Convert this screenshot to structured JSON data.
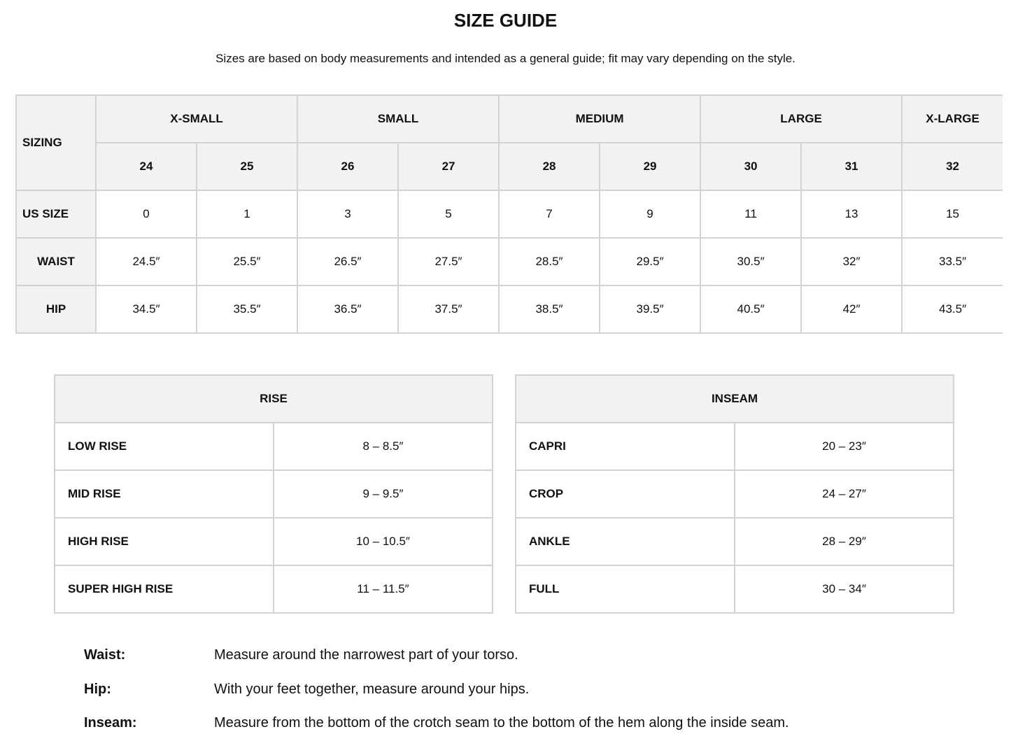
{
  "title": "SIZE GUIDE",
  "subtitle": "Sizes are based on body measurements and intended as a general guide; fit may vary depending on the style.",
  "main_table": {
    "corner": "SIZING",
    "groups": [
      "X-SMALL",
      "SMALL",
      "MEDIUM",
      "LARGE",
      "X-LARGE"
    ],
    "sizes": [
      "24",
      "25",
      "26",
      "27",
      "28",
      "29",
      "30",
      "31",
      "32"
    ],
    "rows": [
      {
        "label": "US SIZE",
        "values": [
          "0",
          "1",
          "3",
          "5",
          "7",
          "9",
          "11",
          "13",
          "15"
        ]
      },
      {
        "label": "WAIST",
        "values": [
          "24.5″",
          "25.5″",
          "26.5″",
          "27.5″",
          "28.5″",
          "29.5″",
          "30.5″",
          "32″",
          "33.5″"
        ]
      },
      {
        "label": "HIP",
        "values": [
          "34.5″",
          "35.5″",
          "36.5″",
          "37.5″",
          "38.5″",
          "39.5″",
          "40.5″",
          "42″",
          "43.5″"
        ]
      }
    ]
  },
  "rise_table": {
    "header": "RISE",
    "rows": [
      {
        "label": "LOW RISE",
        "value": "8 – 8.5″"
      },
      {
        "label": "MID RISE",
        "value": "9 – 9.5″"
      },
      {
        "label": "HIGH RISE",
        "value": "10 – 10.5″"
      },
      {
        "label": "SUPER HIGH RISE",
        "value": "11 – 11.5″"
      }
    ]
  },
  "inseam_table": {
    "header": "INSEAM",
    "rows": [
      {
        "label": "CAPRI",
        "value": "20 – 23″"
      },
      {
        "label": "CROP",
        "value": "24 – 27″"
      },
      {
        "label": "ANKLE",
        "value": "28 – 29″"
      },
      {
        "label": "FULL",
        "value": "30 – 34″"
      }
    ]
  },
  "notes": [
    {
      "term": "Waist:",
      "text": "Measure around the narrowest part of your torso."
    },
    {
      "term": "Hip:",
      "text": "With your feet together, measure around your hips."
    },
    {
      "term": "Inseam:",
      "text": "Measure from the bottom of the crotch seam to the bottom of the hem along the inside seam."
    }
  ],
  "colors": {
    "header_bg": "#f2f2f2",
    "border": "#d2d2d2"
  }
}
